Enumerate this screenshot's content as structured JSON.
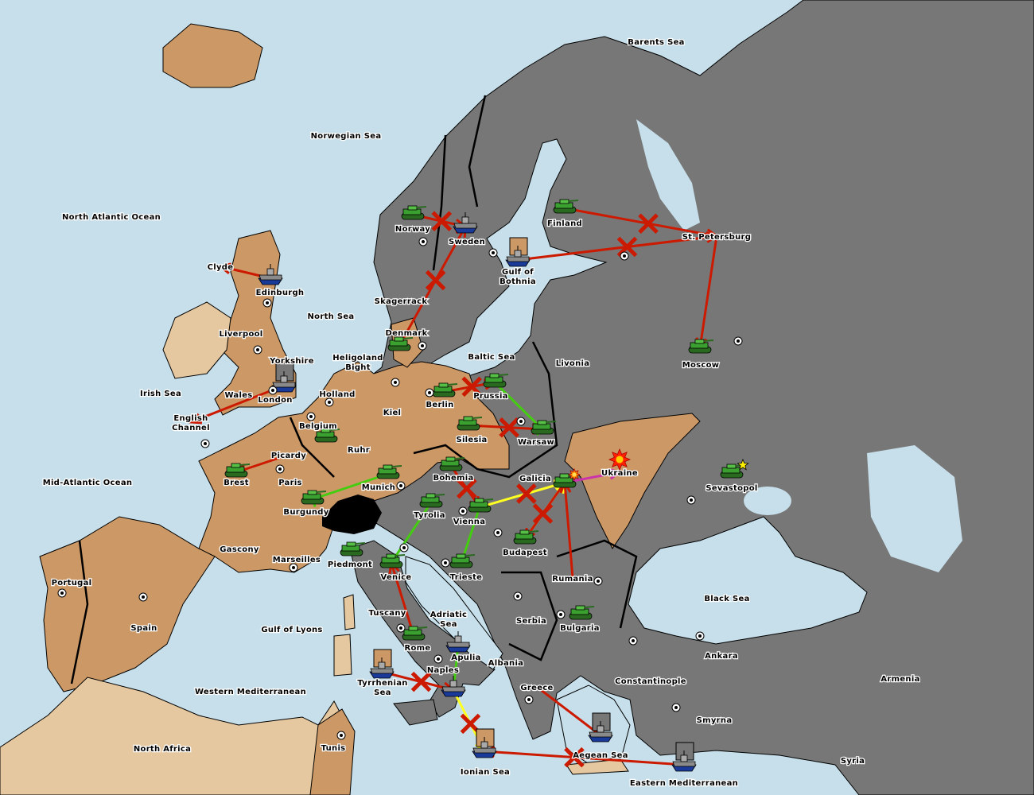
{
  "colors": {
    "sea": "#c6dfea",
    "neutral_land": "#777777",
    "brown_power": "#cc9966",
    "tan_power": "#e6c8a0",
    "impassable": "#000000",
    "order_red": "#cc1a00",
    "order_green": "#44cc11",
    "order_yellow": "#ffff22",
    "order_magenta": "#cc33aa",
    "army_green": "#3aa030",
    "fleet_grey": "#8a8a8a",
    "fleet_hull": "#1a3a9a"
  },
  "provinces": [
    {
      "lines": [
        "Barents Sea"
      ]
    },
    {
      "lines": [
        "Norwegian Sea"
      ]
    },
    {
      "lines": [
        "North Atlantic Ocean"
      ]
    },
    {
      "lines": [
        "Clyde"
      ]
    },
    {
      "lines": [
        "Edinburgh"
      ],
      "sc": true
    },
    {
      "lines": [
        "Liverpool"
      ],
      "sc": true
    },
    {
      "lines": [
        "Yorkshire"
      ]
    },
    {
      "lines": [
        "North Sea"
      ]
    },
    {
      "lines": [
        "Irish Sea"
      ]
    },
    {
      "lines": [
        "Wales"
      ]
    },
    {
      "lines": [
        "London"
      ],
      "sc": true
    },
    {
      "lines": [
        "English",
        "Channel"
      ]
    },
    {
      "lines": [
        "Holland"
      ],
      "sc": true
    },
    {
      "lines": [
        "Heligoland",
        "Bight"
      ]
    },
    {
      "lines": [
        "Kiel"
      ],
      "sc": true
    },
    {
      "lines": [
        "Belgium"
      ],
      "sc": true
    },
    {
      "lines": [
        "Ruhr"
      ]
    },
    {
      "lines": [
        "Picardy"
      ]
    },
    {
      "lines": [
        "Brest"
      ],
      "sc": true
    },
    {
      "lines": [
        "Paris"
      ],
      "sc": true
    },
    {
      "lines": [
        "Burgundy"
      ]
    },
    {
      "lines": [
        "Mid-Atlantic Ocean"
      ]
    },
    {
      "lines": [
        "Gascony"
      ]
    },
    {
      "lines": [
        "Marseilles"
      ],
      "sc": true
    },
    {
      "lines": [
        "Portugal"
      ],
      "sc": true
    },
    {
      "lines": [
        "Spain"
      ],
      "sc": true
    },
    {
      "lines": [
        "Gulf of Lyons"
      ]
    },
    {
      "lines": [
        "Western Mediterranean"
      ]
    },
    {
      "lines": [
        "North Africa"
      ]
    },
    {
      "lines": [
        "Tunis"
      ],
      "sc": true
    },
    {
      "lines": [
        "Tyrrhenian",
        "Sea"
      ]
    },
    {
      "lines": [
        "Ionian Sea"
      ]
    },
    {
      "lines": [
        "Naples"
      ],
      "sc": true
    },
    {
      "lines": [
        "Rome"
      ],
      "sc": true
    },
    {
      "lines": [
        "Apulia"
      ]
    },
    {
      "lines": [
        "Tuscany"
      ]
    },
    {
      "lines": [
        "Venice"
      ],
      "sc": true
    },
    {
      "lines": [
        "Piedmont"
      ]
    },
    {
      "lines": [
        "Adriatic",
        "Sea"
      ]
    },
    {
      "lines": [
        "Albania"
      ]
    },
    {
      "lines": [
        "Greece"
      ],
      "sc": true
    },
    {
      "lines": [
        "Trieste"
      ],
      "sc": true
    },
    {
      "lines": [
        "Tyrolia"
      ]
    },
    {
      "lines": [
        "Munich"
      ],
      "sc": true
    },
    {
      "lines": [
        "Bohemia"
      ]
    },
    {
      "lines": [
        "Vienna"
      ],
      "sc": true
    },
    {
      "lines": [
        "Budapest"
      ],
      "sc": true
    },
    {
      "lines": [
        "Galicia"
      ]
    },
    {
      "lines": [
        "Silesia"
      ]
    },
    {
      "lines": [
        "Berlin"
      ],
      "sc": true
    },
    {
      "lines": [
        "Prussia"
      ]
    },
    {
      "lines": [
        "Warsaw"
      ],
      "sc": true
    },
    {
      "lines": [
        "Baltic Sea"
      ]
    },
    {
      "lines": [
        "Livonia"
      ]
    },
    {
      "lines": [
        "Denmark"
      ],
      "sc": true
    },
    {
      "lines": [
        "Skagerrack"
      ]
    },
    {
      "lines": [
        "Norway"
      ],
      "sc": true
    },
    {
      "lines": [
        "Sweden"
      ],
      "sc": true
    },
    {
      "lines": [
        "Gulf of",
        "Bothnia"
      ]
    },
    {
      "lines": [
        "Finland"
      ]
    },
    {
      "lines": [
        "St. Petersburg"
      ],
      "sc": true
    },
    {
      "lines": [
        "Moscow"
      ],
      "sc": true
    },
    {
      "lines": [
        "Ukraine"
      ]
    },
    {
      "lines": [
        "Sevastopol"
      ],
      "sc": true
    },
    {
      "lines": [
        "Rumania"
      ],
      "sc": true
    },
    {
      "lines": [
        "Serbia"
      ],
      "sc": true
    },
    {
      "lines": [
        "Bulgaria"
      ],
      "sc": true
    },
    {
      "lines": [
        "Black Sea"
      ]
    },
    {
      "lines": [
        "Constantinople"
      ],
      "sc": true
    },
    {
      "lines": [
        "Ankara"
      ],
      "sc": true
    },
    {
      "lines": [
        "Armenia"
      ]
    },
    {
      "lines": [
        "Smyrna"
      ],
      "sc": true
    },
    {
      "lines": [
        "Syria"
      ]
    },
    {
      "lines": [
        "Aegean Sea"
      ]
    },
    {
      "lines": [
        "Eastern Mediterranean"
      ]
    }
  ],
  "units": [
    {
      "province": "Norway",
      "type": "army"
    },
    {
      "province": "Sweden",
      "type": "fleet"
    },
    {
      "province": "Finland",
      "type": "army"
    },
    {
      "province": "Gulf of Bothnia",
      "type": "fleet",
      "dislodged_marker": "#cc9966"
    },
    {
      "province": "Denmark",
      "type": "army"
    },
    {
      "province": "Edinburgh",
      "type": "fleet"
    },
    {
      "province": "London",
      "type": "fleet",
      "dislodged_marker": "#777777"
    },
    {
      "province": "Belgium",
      "type": "army"
    },
    {
      "province": "Brest",
      "type": "army"
    },
    {
      "province": "Munich",
      "type": "army"
    },
    {
      "province": "Burgundy",
      "type": "army"
    },
    {
      "province": "Piedmont",
      "type": "army"
    },
    {
      "province": "Venice",
      "type": "army"
    },
    {
      "province": "Tyrolia",
      "type": "army"
    },
    {
      "province": "Bohemia",
      "type": "army"
    },
    {
      "province": "Vienna",
      "type": "army"
    },
    {
      "province": "Budapest",
      "type": "army"
    },
    {
      "province": "Galicia",
      "type": "army"
    },
    {
      "province": "Trieste",
      "type": "army"
    },
    {
      "province": "Berlin",
      "type": "army"
    },
    {
      "province": "Prussia",
      "type": "army"
    },
    {
      "province": "Silesia",
      "type": "army"
    },
    {
      "province": "Warsaw",
      "type": "army"
    },
    {
      "province": "Moscow",
      "type": "army"
    },
    {
      "province": "Sevastopol",
      "type": "army"
    },
    {
      "province": "Rome",
      "type": "army"
    },
    {
      "province": "Apulia",
      "type": "fleet"
    },
    {
      "province": "Naples",
      "type": "fleet"
    },
    {
      "province": "Tyrrhenian Sea",
      "type": "fleet",
      "dislodged_marker": "#cc9966"
    },
    {
      "province": "Ionian Sea",
      "type": "fleet",
      "dislodged_marker": "#cc9966"
    },
    {
      "province": "Aegean Sea",
      "type": "fleet",
      "dislodged_marker": "#777777"
    },
    {
      "province": "Eastern Mediterranean",
      "type": "fleet",
      "dislodged_marker": "#777777"
    },
    {
      "province": "Bulgaria",
      "type": "army"
    }
  ],
  "orders": [
    {
      "from": "Norway",
      "to": "Sweden",
      "color": "red",
      "failed": true
    },
    {
      "from": "Denmark",
      "to": "Sweden",
      "color": "red",
      "failed": true
    },
    {
      "from": "Finland",
      "to": "St. Petersburg",
      "color": "red",
      "failed": true
    },
    {
      "from": "St. Petersburg",
      "to": "Moscow",
      "color": "red",
      "failed": false
    },
    {
      "from": "Gulf of Bothnia",
      "to": "St. Petersburg",
      "color": "red",
      "failed": true
    },
    {
      "from": "Edinburgh",
      "to": "Clyde",
      "color": "red",
      "failed": false
    },
    {
      "from": "London",
      "to": "English Channel",
      "color": "red",
      "failed": false
    },
    {
      "from": "Picardy",
      "to": "Brest",
      "color": "red",
      "failed": false
    },
    {
      "from": "Berlin",
      "to": "Prussia",
      "color": "red",
      "failed": true
    },
    {
      "from": "Silesia",
      "to": "Warsaw",
      "color": "red",
      "failed": true
    },
    {
      "from": "Prussia",
      "to": "Warsaw",
      "color": "green",
      "failed": false
    },
    {
      "from": "Munich",
      "to": "Burgundy",
      "color": "green",
      "failed": false
    },
    {
      "from": "Bohemia",
      "to": "Vienna",
      "color": "red",
      "failed": true
    },
    {
      "from": "Vienna",
      "to": "Galicia",
      "color": "yellow",
      "failed": true
    },
    {
      "from": "Budapest",
      "to": "Galicia",
      "color": "yellow",
      "failed": false
    },
    {
      "from": "Galicia",
      "to": "Budapest",
      "color": "red",
      "failed": true
    },
    {
      "from": "Rumania",
      "to": "Galicia",
      "color": "red",
      "failed": false
    },
    {
      "from": "Galicia",
      "to": "Ukraine",
      "color": "magenta",
      "failed": false
    },
    {
      "from": "Trieste",
      "to": "Vienna",
      "color": "green",
      "failed": false
    },
    {
      "from": "Venice",
      "to": "Tyrolia",
      "color": "green",
      "failed": false
    },
    {
      "from": "Rome",
      "to": "Venice",
      "color": "red",
      "failed": false
    },
    {
      "from": "Tyrrhenian Sea",
      "to": "Naples",
      "color": "red",
      "failed": true
    },
    {
      "from": "Apulia",
      "to": "Naples",
      "color": "green",
      "failed": false
    },
    {
      "from": "Naples",
      "to": "Ionian Sea",
      "color": "yellow",
      "failed": true
    },
    {
      "from": "Eastern Mediterranean",
      "to": "Ionian Sea",
      "color": "red",
      "failed": true
    },
    {
      "from": "Greece",
      "to": "Aegean Sea",
      "color": "red",
      "failed": false
    }
  ],
  "events": [
    {
      "province": "Ukraine",
      "type": "explosion"
    },
    {
      "province": "Galicia",
      "type": "small-explosion"
    },
    {
      "province": "Sevastopol",
      "type": "star"
    }
  ]
}
